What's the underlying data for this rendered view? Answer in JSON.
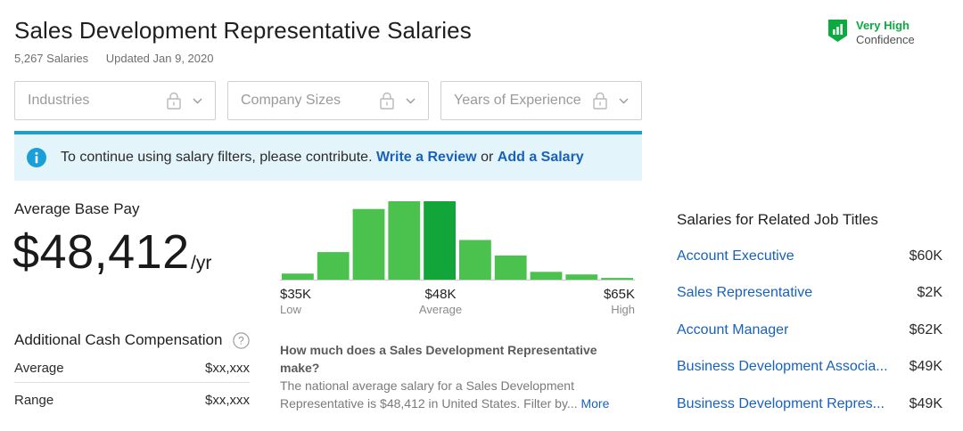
{
  "header": {
    "title": "Sales Development Representative Salaries",
    "salaries_count": "5,267 Salaries",
    "updated": "Updated Jan 9, 2020",
    "confidence_level": "Very High",
    "confidence_label": "Confidence"
  },
  "filters": [
    {
      "label": "Industries",
      "icon": "lock-icon"
    },
    {
      "label": "Company Sizes",
      "icon": "lock-icon"
    },
    {
      "label": "Years of Experience",
      "icon": "lock-icon"
    }
  ],
  "notice": {
    "text": "To continue using salary filters, please contribute.",
    "link_review": "Write a Review",
    "or": "or",
    "link_salary": "Add a Salary"
  },
  "average": {
    "label": "Average Base Pay",
    "value": "$48,412",
    "unit": "/yr"
  },
  "additional_cash": {
    "title": "Additional Cash Compensation",
    "rows": [
      {
        "label": "Average",
        "value": "$xx,xxx"
      },
      {
        "label": "Range",
        "value": "$xx,xxx"
      }
    ]
  },
  "chart_data": {
    "type": "bar",
    "values": [
      7,
      32,
      82,
      91,
      91,
      46,
      28,
      9,
      6,
      2
    ],
    "highlight_index": 4,
    "ticks": [
      {
        "value": "$35K",
        "caption": "Low"
      },
      {
        "value": "$48K",
        "caption": "Average"
      },
      {
        "value": "$65K",
        "caption": "High"
      }
    ],
    "colors": {
      "bar": "#4bc24e",
      "highlight": "#12a539",
      "baseline": "#c9c9c9"
    }
  },
  "faq": {
    "question": "How much does a Sales Development Representative make?",
    "answer": "The national average salary for a Sales Development Representative is $48,412 in United States. Filter by...",
    "more": "More"
  },
  "related": {
    "title": "Salaries for Related Job Titles",
    "items": [
      {
        "job": "Account Executive",
        "pay": "$60K"
      },
      {
        "job": "Sales Representative",
        "pay": "$2K"
      },
      {
        "job": "Account Manager",
        "pay": "$62K"
      },
      {
        "job": "Business Development Associa...",
        "pay": "$49K"
      },
      {
        "job": "Business Development Repres...",
        "pay": "$49K"
      }
    ]
  }
}
